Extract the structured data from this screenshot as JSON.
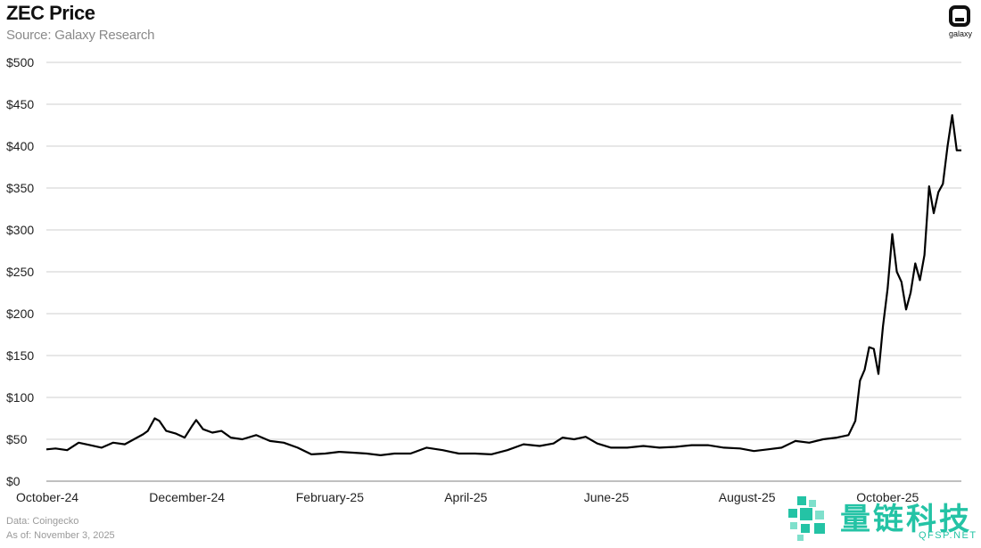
{
  "header": {
    "title": "ZEC Price",
    "subtitle": "Source: Galaxy Research"
  },
  "logo": {
    "text": "galaxy"
  },
  "footer": {
    "data_source": "Data: Coingecko",
    "as_of": "As of: November 3, 2025"
  },
  "watermark": {
    "cn": "量链科技",
    "en": "QFSP.NET",
    "color": "#24c3a5"
  },
  "chart_data": {
    "type": "line",
    "ylim": [
      0,
      500
    ],
    "yticks": [
      0,
      50,
      100,
      150,
      200,
      250,
      300,
      350,
      400,
      450,
      500
    ],
    "ytick_labels": [
      "$0",
      "$50",
      "$100",
      "$150",
      "$200",
      "$250",
      "$300",
      "$350",
      "$400",
      "$450",
      "$500"
    ],
    "xlim": [
      "2024-10-01",
      "2025-11-02"
    ],
    "xticks": [
      "2024-10-01",
      "2024-12-01",
      "2025-02-01",
      "2025-04-01",
      "2025-06-01",
      "2025-08-01",
      "2025-10-01"
    ],
    "xtick_labels": [
      "October-24",
      "December-24",
      "February-25",
      "April-25",
      "June-25",
      "August-25",
      "October-25"
    ],
    "grid": true,
    "line_color": "#000000",
    "series": [
      {
        "x": [
          "2024-10-01",
          "2024-10-05",
          "2024-10-10",
          "2024-10-15",
          "2024-10-20",
          "2024-10-25",
          "2024-10-30",
          "2024-11-04",
          "2024-11-08",
          "2024-11-12",
          "2024-11-14",
          "2024-11-17",
          "2024-11-19",
          "2024-11-22",
          "2024-11-26",
          "2024-11-30",
          "2024-12-03",
          "2024-12-05",
          "2024-12-08",
          "2024-12-12",
          "2024-12-16",
          "2024-12-20",
          "2024-12-25",
          "2024-12-31",
          "2025-01-06",
          "2025-01-12",
          "2025-01-18",
          "2025-01-24",
          "2025-01-30",
          "2025-02-05",
          "2025-02-11",
          "2025-02-17",
          "2025-02-23",
          "2025-03-01",
          "2025-03-08",
          "2025-03-15",
          "2025-03-22",
          "2025-03-29",
          "2025-04-05",
          "2025-04-12",
          "2025-04-19",
          "2025-04-26",
          "2025-05-03",
          "2025-05-09",
          "2025-05-13",
          "2025-05-18",
          "2025-05-23",
          "2025-05-28",
          "2025-06-03",
          "2025-06-10",
          "2025-06-17",
          "2025-06-24",
          "2025-07-01",
          "2025-07-08",
          "2025-07-15",
          "2025-07-22",
          "2025-07-29",
          "2025-08-04",
          "2025-08-10",
          "2025-08-16",
          "2025-08-22",
          "2025-08-28",
          "2025-09-03",
          "2025-09-09",
          "2025-09-14",
          "2025-09-17",
          "2025-09-19",
          "2025-09-21",
          "2025-09-23",
          "2025-09-25",
          "2025-09-27",
          "2025-09-29",
          "2025-10-01",
          "2025-10-03",
          "2025-10-05",
          "2025-10-07",
          "2025-10-09",
          "2025-10-11",
          "2025-10-13",
          "2025-10-15",
          "2025-10-17",
          "2025-10-19",
          "2025-10-21",
          "2025-10-23",
          "2025-10-25",
          "2025-10-27",
          "2025-10-29",
          "2025-10-31",
          "2025-11-02"
        ],
        "y": [
          38,
          39,
          37,
          46,
          43,
          40,
          46,
          44,
          50,
          56,
          60,
          75,
          72,
          60,
          57,
          52,
          65,
          73,
          62,
          58,
          60,
          52,
          50,
          55,
          48,
          46,
          40,
          32,
          33,
          35,
          34,
          33,
          31,
          33,
          33,
          40,
          37,
          33,
          33,
          32,
          37,
          44,
          42,
          45,
          52,
          50,
          53,
          45,
          40,
          40,
          42,
          40,
          41,
          43,
          43,
          40,
          39,
          36,
          38,
          40,
          48,
          46,
          50,
          52,
          55,
          72,
          120,
          133,
          160,
          158,
          128,
          185,
          230,
          295,
          250,
          238,
          205,
          225,
          260,
          240,
          270,
          352,
          320,
          345,
          355,
          400,
          437,
          395,
          395
        ]
      }
    ]
  }
}
